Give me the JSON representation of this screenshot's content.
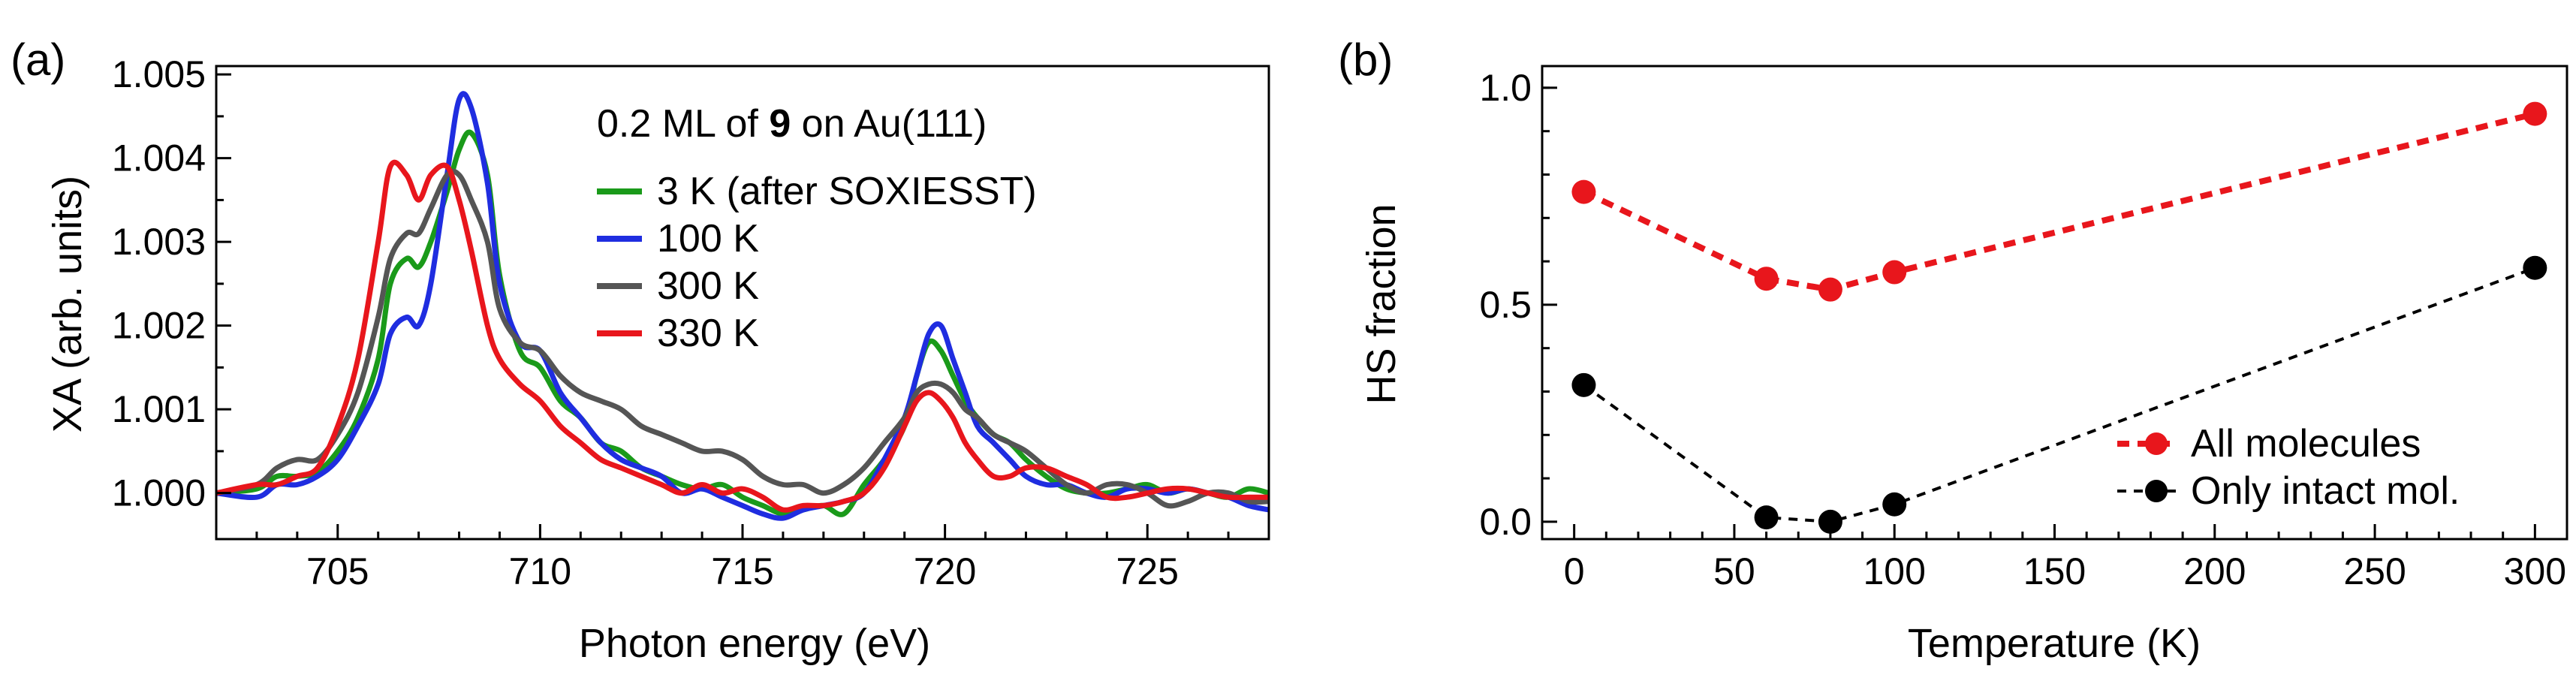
{
  "chart_data": [
    {
      "panel_label": "(a)",
      "type": "line",
      "title_prefix": "0.2 ML of ",
      "title_bold": "9",
      "title_suffix": " on Au(111)",
      "xlabel": "Photon energy (eV)",
      "ylabel": "XA (arb. units)",
      "xlim": [
        702,
        728
      ],
      "ylim": [
        0.99945,
        1.0051
      ],
      "xticks": [
        705,
        710,
        715,
        720,
        725
      ],
      "yticks": [
        1.0,
        1.001,
        1.002,
        1.003,
        1.004,
        1.005
      ],
      "ytick_labels": [
        "1.000",
        "1.001",
        "1.002",
        "1.003",
        "1.004",
        "1.005"
      ],
      "series": [
        {
          "name": "3 K (after SOXIESST)",
          "color": "#1a9a1a",
          "x": [
            702,
            703,
            703.5,
            704,
            704.5,
            705,
            705.5,
            706,
            706.3,
            706.7,
            707,
            707.3,
            707.7,
            708,
            708.3,
            708.7,
            709,
            709.5,
            710,
            710.5,
            711,
            711.5,
            712,
            712.5,
            713,
            713.5,
            714,
            714.5,
            715,
            715.5,
            716,
            716.5,
            717,
            717.5,
            718,
            718.5,
            719,
            719.3,
            719.6,
            719.9,
            720.2,
            720.5,
            720.8,
            721.2,
            721.6,
            722,
            722.5,
            723,
            723.5,
            724,
            724.5,
            725,
            725.5,
            726,
            726.5,
            727,
            727.5,
            728
          ],
          "y": [
            1.0,
            1.00005,
            1.0002,
            1.0002,
            1.00025,
            1.0005,
            1.0009,
            1.0016,
            1.0025,
            1.0028,
            1.0027,
            1.003,
            1.0036,
            1.0041,
            1.0043,
            1.0038,
            1.0026,
            1.0017,
            1.0015,
            1.0011,
            1.0009,
            1.0006,
            1.0005,
            1.0003,
            1.0002,
            1.0001,
            1.00005,
            1.0001,
            0.99995,
            0.99985,
            0.99975,
            0.9998,
            0.99985,
            0.99975,
            1.0001,
            1.0004,
            1.0008,
            1.0014,
            1.0018,
            1.0017,
            1.0014,
            1.0011,
            1.0009,
            1.0007,
            1.0006,
            1.0004,
            1.0002,
            1.00005,
            1.0,
            1.0,
            1.00005,
            1.0001,
            1.0,
            1.00005,
            1.0,
            0.99995,
            1.00005,
            1.0
          ],
          "show_in_legend": true
        },
        {
          "name": "100 K",
          "color": "#1f2de0",
          "x": [
            702,
            703,
            703.5,
            704,
            704.5,
            705,
            705.5,
            706,
            706.3,
            706.7,
            707,
            707.3,
            707.7,
            708,
            708.3,
            708.7,
            709,
            709.5,
            710,
            710.5,
            711,
            711.5,
            712,
            712.5,
            713,
            713.5,
            714,
            714.5,
            715,
            715.5,
            716,
            716.5,
            717,
            717.5,
            718,
            718.5,
            719,
            719.3,
            719.6,
            719.9,
            720.2,
            720.5,
            720.8,
            721.2,
            721.6,
            722,
            722.5,
            723,
            723.5,
            724,
            724.5,
            725,
            725.5,
            726,
            726.5,
            727,
            727.5,
            728
          ],
          "y": [
            1.0,
            0.99995,
            1.0001,
            1.0001,
            1.0002,
            1.0004,
            1.0008,
            1.0013,
            1.0019,
            1.0021,
            1.002,
            1.0025,
            1.0038,
            1.0047,
            1.0046,
            1.0037,
            1.0025,
            1.0018,
            1.0017,
            1.0012,
            1.0009,
            1.0006,
            1.0004,
            1.0003,
            1.0002,
            1.0,
            1.00005,
            0.99995,
            0.99985,
            0.99975,
            0.9997,
            0.9998,
            0.99985,
            0.9999,
            1.0,
            1.0004,
            1.0009,
            1.0014,
            1.0019,
            1.002,
            1.0016,
            1.0012,
            1.0008,
            1.0006,
            1.0004,
            1.0002,
            1.0001,
            1.0001,
            1.0,
            0.99995,
            1.00005,
            1.00005,
            1.0,
            1.00005,
            1.0,
            0.99995,
            0.99985,
            0.9998
          ],
          "show_in_legend": true
        },
        {
          "name": "300 K",
          "color": "#555555",
          "x": [
            702,
            703,
            703.5,
            704,
            704.5,
            705,
            705.5,
            706,
            706.3,
            706.7,
            707,
            707.3,
            707.7,
            708,
            708.3,
            708.7,
            709,
            709.5,
            710,
            710.5,
            711,
            711.5,
            712,
            712.5,
            713,
            713.5,
            714,
            714.5,
            715,
            715.5,
            716,
            716.5,
            717,
            717.5,
            718,
            718.5,
            719,
            719.3,
            719.6,
            719.9,
            720.2,
            720.5,
            720.8,
            721.2,
            721.6,
            722,
            722.5,
            723,
            723.5,
            724,
            724.5,
            725,
            725.5,
            726,
            726.5,
            727,
            727.5,
            728
          ],
          "y": [
            1.0,
            1.0001,
            1.0003,
            1.0004,
            1.0004,
            1.0007,
            1.0012,
            1.0021,
            1.0028,
            1.0031,
            1.0031,
            1.0034,
            1.0038,
            1.0038,
            1.0035,
            1.003,
            1.0022,
            1.0018,
            1.0017,
            1.0014,
            1.0012,
            1.0011,
            1.001,
            1.0008,
            1.0007,
            1.0006,
            1.0005,
            1.0005,
            1.0004,
            1.0002,
            1.0001,
            1.0001,
            1.0,
            1.0001,
            1.0003,
            1.0006,
            1.0009,
            1.0012,
            1.0013,
            1.0013,
            1.0012,
            1.001,
            1.0009,
            1.0007,
            1.0006,
            1.0005,
            1.0003,
            1.0001,
            1.0,
            1.0001,
            1.0001,
            1.0,
            0.99985,
            0.9999,
            1.0,
            1.0,
            0.9999,
            0.9999
          ],
          "show_in_legend": true
        },
        {
          "name": "330 K",
          "color": "#e8161c",
          "x": [
            702,
            703,
            703.5,
            704,
            704.5,
            705,
            705.5,
            706,
            706.3,
            706.7,
            707,
            707.3,
            707.7,
            708,
            708.3,
            708.7,
            709,
            709.5,
            710,
            710.5,
            711,
            711.5,
            712,
            712.5,
            713,
            713.5,
            714,
            714.5,
            715,
            715.5,
            716,
            716.5,
            717,
            717.5,
            718,
            718.5,
            719,
            719.3,
            719.6,
            719.9,
            720.2,
            720.5,
            720.8,
            721.2,
            721.6,
            722,
            722.5,
            723,
            723.5,
            724,
            724.5,
            725,
            725.5,
            726,
            726.5,
            727,
            727.5,
            728
          ],
          "y": [
            1.0,
            1.0001,
            1.0001,
            1.0002,
            1.0003,
            1.0008,
            1.0016,
            1.003,
            1.0039,
            1.0038,
            1.0035,
            1.0038,
            1.0039,
            1.0035,
            1.0029,
            1.002,
            1.0016,
            1.0013,
            1.0011,
            1.0008,
            1.0006,
            1.0004,
            1.0003,
            1.0002,
            1.0001,
            1.0,
            1.0001,
            1.0,
            1.00005,
            0.99995,
            0.9998,
            0.99985,
            0.99985,
            0.9999,
            1.0,
            1.0003,
            1.0008,
            1.0011,
            1.0012,
            1.0011,
            1.0009,
            1.0006,
            1.0004,
            1.0002,
            1.0002,
            1.0003,
            1.0003,
            1.0002,
            1.0001,
            0.99995,
            0.99995,
            1.0,
            1.00005,
            1.00005,
            1.0,
            0.99995,
            0.99995,
            0.99995
          ],
          "show_in_legend": true
        }
      ]
    },
    {
      "panel_label": "(b)",
      "type": "line",
      "xlabel": "Temperature (K)",
      "ylabel": "HS fraction",
      "xlim": [
        -10,
        310
      ],
      "ylim": [
        -0.04,
        1.05
      ],
      "xticks": [
        0,
        50,
        100,
        150,
        200,
        250,
        300
      ],
      "yticks": [
        0.0,
        0.5,
        1.0
      ],
      "ytick_labels": [
        "0.0",
        "0.5",
        "1.0"
      ],
      "legend_position": "bottom-right",
      "series": [
        {
          "name": "All molecules",
          "color": "#e8161c",
          "style": "dashed",
          "x": [
            3,
            60,
            80,
            100,
            300
          ],
          "y": [
            0.76,
            0.56,
            0.535,
            0.575,
            0.94
          ]
        },
        {
          "name": "Only intact mol.",
          "color": "#000000",
          "style": "dashed",
          "x": [
            3,
            60,
            80,
            100,
            300
          ],
          "y": [
            0.315,
            0.01,
            0.0,
            0.04,
            0.585
          ]
        }
      ]
    }
  ]
}
